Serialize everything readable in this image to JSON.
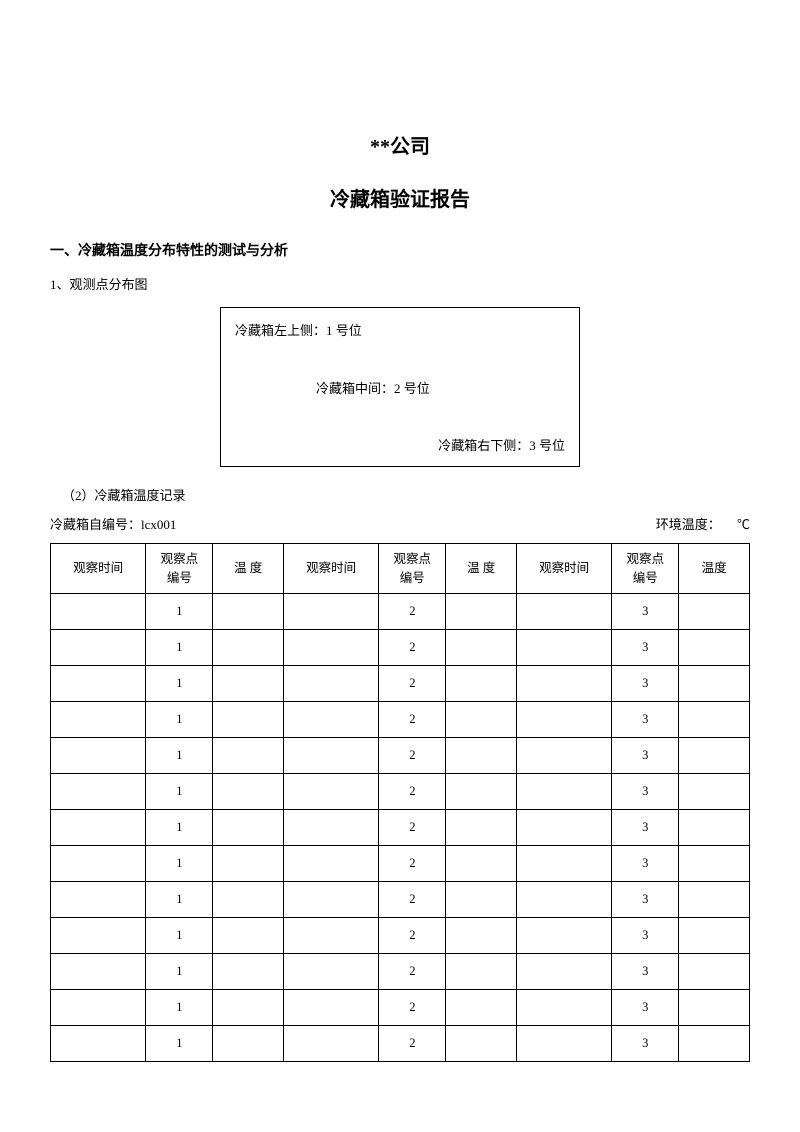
{
  "company": "**公司",
  "reportTitle": "冷藏箱验证报告",
  "section1Title": "一、冷藏箱温度分布特性的测试与分析",
  "sub1": "1、观测点分布图",
  "diagram": {
    "pos1": "冷藏箱左上侧：1 号位",
    "pos2": "冷藏箱中间：2 号位",
    "pos3": "冷藏箱右下侧：3 号位"
  },
  "sub2": "（2）冷藏箱温度记录",
  "boxIdLabel": "冷藏箱自编号：",
  "boxId": "lcx001",
  "envTempLabel": "环境温度：",
  "envTempUnit": "℃",
  "table": {
    "headers": {
      "time": "观察时间",
      "point": "观察点\n编号",
      "temp": "温 度",
      "tempAlt": "温度"
    },
    "rows": [
      {
        "t1": "",
        "p1": "1",
        "v1": "",
        "t2": "",
        "p2": "2",
        "v2": "",
        "t3": "",
        "p3": "3",
        "v3": ""
      },
      {
        "t1": "",
        "p1": "1",
        "v1": "",
        "t2": "",
        "p2": "2",
        "v2": "",
        "t3": "",
        "p3": "3",
        "v3": ""
      },
      {
        "t1": "",
        "p1": "1",
        "v1": "",
        "t2": "",
        "p2": "2",
        "v2": "",
        "t3": "",
        "p3": "3",
        "v3": ""
      },
      {
        "t1": "",
        "p1": "1",
        "v1": "",
        "t2": "",
        "p2": "2",
        "v2": "",
        "t3": "",
        "p3": "3",
        "v3": ""
      },
      {
        "t1": "",
        "p1": "1",
        "v1": "",
        "t2": "",
        "p2": "2",
        "v2": "",
        "t3": "",
        "p3": "3",
        "v3": ""
      },
      {
        "t1": "",
        "p1": "1",
        "v1": "",
        "t2": "",
        "p2": "2",
        "v2": "",
        "t3": "",
        "p3": "3",
        "v3": ""
      },
      {
        "t1": "",
        "p1": "1",
        "v1": "",
        "t2": "",
        "p2": "2",
        "v2": "",
        "t3": "",
        "p3": "3",
        "v3": ""
      },
      {
        "t1": "",
        "p1": "1",
        "v1": "",
        "t2": "",
        "p2": "2",
        "v2": "",
        "t3": "",
        "p3": "3",
        "v3": ""
      },
      {
        "t1": "",
        "p1": "1",
        "v1": "",
        "t2": "",
        "p2": "2",
        "v2": "",
        "t3": "",
        "p3": "3",
        "v3": ""
      },
      {
        "t1": "",
        "p1": "1",
        "v1": "",
        "t2": "",
        "p2": "2",
        "v2": "",
        "t3": "",
        "p3": "3",
        "v3": ""
      },
      {
        "t1": "",
        "p1": "1",
        "v1": "",
        "t2": "",
        "p2": "2",
        "v2": "",
        "t3": "",
        "p3": "3",
        "v3": ""
      },
      {
        "t1": "",
        "p1": "1",
        "v1": "",
        "t2": "",
        "p2": "2",
        "v2": "",
        "t3": "",
        "p3": "3",
        "v3": ""
      },
      {
        "t1": "",
        "p1": "1",
        "v1": "",
        "t2": "",
        "p2": "2",
        "v2": "",
        "t3": "",
        "p3": "3",
        "v3": ""
      }
    ]
  }
}
